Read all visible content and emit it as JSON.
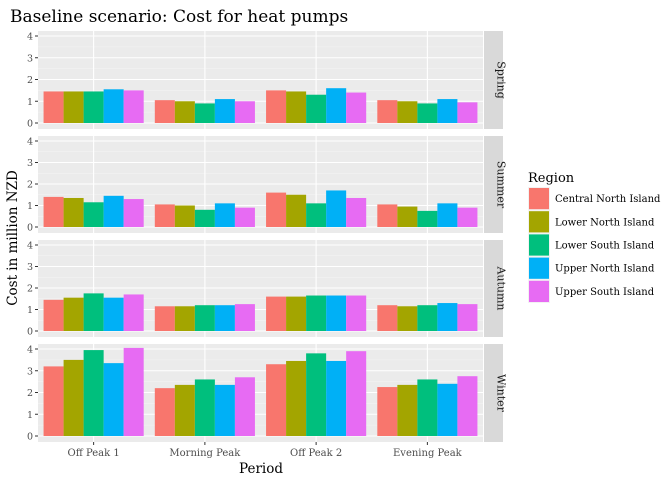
{
  "chart_data": {
    "type": "bar",
    "title": "Baseline scenario: Cost for heat pumps",
    "xlabel": "Period",
    "ylabel": "Cost in million NZD",
    "categories": [
      "Off Peak 1",
      "Morning Peak",
      "Off Peak 2",
      "Evening Peak"
    ],
    "ylim": [
      0,
      4
    ],
    "yticks": [
      "0",
      "1",
      "2",
      "3",
      "4"
    ],
    "legend": {
      "title": "Region",
      "position": "right"
    },
    "series": [
      {
        "name": "Central North Island",
        "color": "#F8766D"
      },
      {
        "name": "Lower North Island",
        "color": "#A3A500"
      },
      {
        "name": "Lower South Island",
        "color": "#00BF7D"
      },
      {
        "name": "Upper North Island",
        "color": "#00B0F6"
      },
      {
        "name": "Upper South Island",
        "color": "#E76BF3"
      }
    ],
    "facets": [
      {
        "label": "Spring",
        "values": [
          [
            1.45,
            1.45,
            1.45,
            1.55,
            1.5
          ],
          [
            1.05,
            1.0,
            0.9,
            1.1,
            1.0
          ],
          [
            1.5,
            1.45,
            1.3,
            1.6,
            1.4
          ],
          [
            1.05,
            1.0,
            0.9,
            1.1,
            0.95
          ]
        ]
      },
      {
        "label": "Summer",
        "values": [
          [
            1.4,
            1.35,
            1.15,
            1.45,
            1.3
          ],
          [
            1.05,
            1.0,
            0.8,
            1.1,
            0.9
          ],
          [
            1.6,
            1.5,
            1.1,
            1.7,
            1.35
          ],
          [
            1.05,
            0.95,
            0.75,
            1.1,
            0.9
          ]
        ]
      },
      {
        "label": "Autumn",
        "values": [
          [
            1.45,
            1.55,
            1.75,
            1.55,
            1.7
          ],
          [
            1.15,
            1.15,
            1.2,
            1.2,
            1.25
          ],
          [
            1.6,
            1.6,
            1.65,
            1.65,
            1.65
          ],
          [
            1.2,
            1.15,
            1.2,
            1.3,
            1.25
          ]
        ]
      },
      {
        "label": "Winter",
        "values": [
          [
            3.2,
            3.5,
            3.95,
            3.35,
            4.05
          ],
          [
            2.2,
            2.35,
            2.6,
            2.35,
            2.7
          ],
          [
            3.3,
            3.45,
            3.8,
            3.45,
            3.9
          ],
          [
            2.25,
            2.35,
            2.6,
            2.4,
            2.75
          ]
        ]
      }
    ]
  }
}
